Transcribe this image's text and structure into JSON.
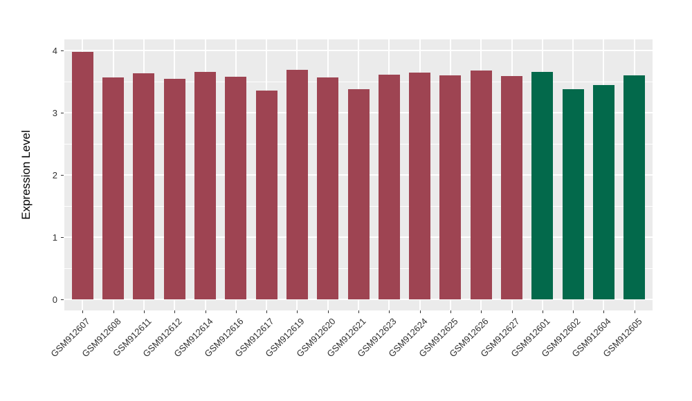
{
  "chart_data": {
    "type": "bar",
    "title": "",
    "xlabel": "",
    "ylabel": "Expression Level",
    "ylim": [
      0,
      4.2
    ],
    "yticks": [
      "0",
      "1",
      "2",
      "3",
      "4"
    ],
    "ytick_values": [
      0,
      1,
      2,
      3,
      4
    ],
    "minor_gridline_values": [
      0.5,
      1.5,
      2.5,
      3.5
    ],
    "grid": "white major and minor gridlines on gray panel",
    "legend_position": "none",
    "categories": [
      "GSM912607",
      "GSM912608",
      "GSM912611",
      "GSM912612",
      "GSM912614",
      "GSM912616",
      "GSM912617",
      "GSM912619",
      "GSM912620",
      "GSM912621",
      "GSM912623",
      "GSM912624",
      "GSM912625",
      "GSM912626",
      "GSM912627",
      "GSM912601",
      "GSM912602",
      "GSM912604",
      "GSM912605"
    ],
    "values": [
      3.98,
      3.57,
      3.63,
      3.54,
      3.66,
      3.58,
      3.36,
      3.69,
      3.57,
      3.38,
      3.61,
      3.65,
      3.6,
      3.68,
      3.59,
      3.66,
      3.38,
      3.45,
      3.6
    ],
    "groups": [
      "group-1",
      "group-1",
      "group-1",
      "group-1",
      "group-1",
      "group-1",
      "group-1",
      "group-1",
      "group-1",
      "group-1",
      "group-1",
      "group-1",
      "group-1",
      "group-1",
      "group-1",
      "group-2",
      "group-2",
      "group-2",
      "group-2"
    ],
    "group_colors": {
      "group-1": "#9E4452",
      "group-2": "#03694B"
    },
    "colors": {
      "panel_background": "#EBEBEB",
      "gridline": "#FFFFFF",
      "axis_text": "#303030",
      "tick_mark": "#333333",
      "figure_background": "#FFFFFF"
    }
  }
}
